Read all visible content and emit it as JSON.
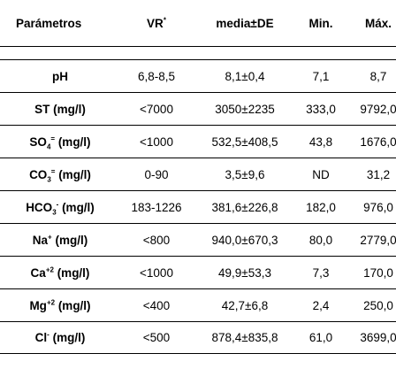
{
  "header": {
    "col0": "Parámetros",
    "col1": "VR",
    "col1_sup": "*",
    "col2": "media±DE",
    "col3": "Min.",
    "col4": "Máx."
  },
  "rows": [
    {
      "param": "pH",
      "pre": "pH",
      "sub": "",
      "sup": "",
      "post": "",
      "vr": "6,8-8,5",
      "media": "8,1±0,4",
      "min": "7,1",
      "max": "8,7"
    },
    {
      "param": "ST (mg/l)",
      "pre": "ST (mg/l)",
      "sub": "",
      "sup": "",
      "post": "",
      "vr": "<7000",
      "media": "3050±2235",
      "min": "333,0",
      "max": "9792,0"
    },
    {
      "param": "SO4= (mg/l)",
      "pre": "SO",
      "sub": "4",
      "sup": "=",
      "post": " (mg/l)",
      "vr": "<1000",
      "media": "532,5±408,5",
      "min": "43,8",
      "max": "1676,0"
    },
    {
      "param": "CO3= (mg/l)",
      "pre": "CO",
      "sub": "3",
      "sup": "=",
      "post": " (mg/l)",
      "vr": "0-90",
      "media": "3,5±9,6",
      "min": "ND",
      "max": "31,2"
    },
    {
      "param": "HCO3- (mg/l)",
      "pre": "HCO",
      "sub": "3",
      "sup": "-",
      "post": " (mg/l)",
      "vr": "183-1226",
      "media": "381,6±226,8",
      "min": "182,0",
      "max": "976,0"
    },
    {
      "param": "Na+ (mg/l)",
      "pre": "Na",
      "sub": "",
      "sup": "+",
      "post": " (mg/l)",
      "vr": "<800",
      "media": "940,0±670,3",
      "min": "80,0",
      "max": "2779,0"
    },
    {
      "param": "Ca+2 (mg/l)",
      "pre": "Ca",
      "sub": "",
      "sup": "+2",
      "post": " (mg/l)",
      "vr": "<1000",
      "media": "49,9±53,3",
      "min": "7,3",
      "max": "170,0"
    },
    {
      "param": "Mg+2 (mg/l)",
      "pre": "Mg",
      "sub": "",
      "sup": "+2",
      "post": " (mg/l)",
      "vr": "<400",
      "media": "42,7±6,8",
      "min": "2,4",
      "max": "250,0"
    },
    {
      "param": "Cl- (mg/l)",
      "pre": "Cl",
      "sub": "",
      "sup": "-",
      "post": " (mg/l)",
      "vr": "<500",
      "media": "878,4±835,8",
      "min": "61,0",
      "max": "3699,0"
    }
  ]
}
